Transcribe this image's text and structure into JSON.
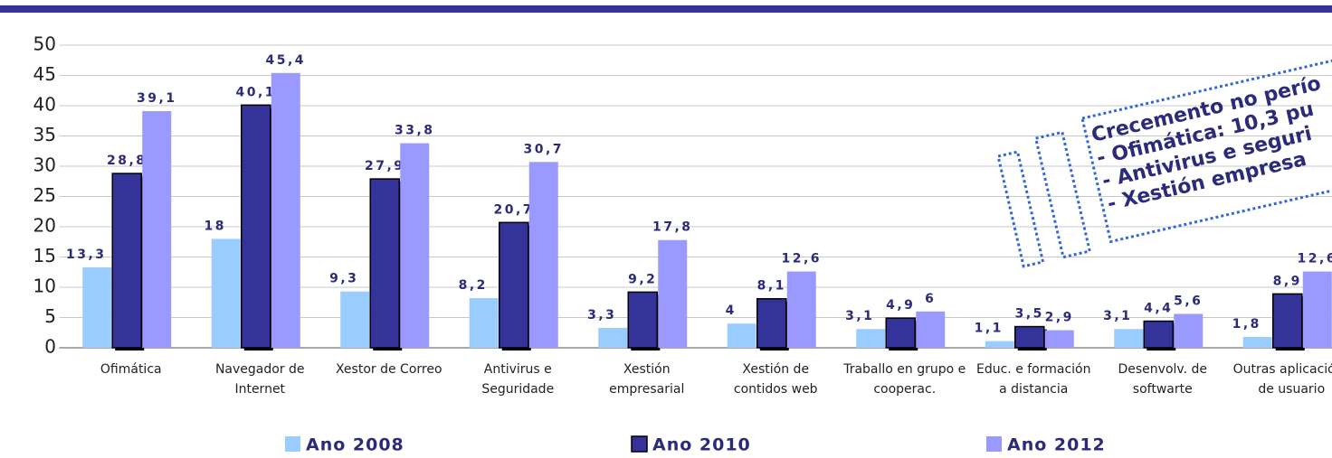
{
  "chart_data": {
    "type": "bar",
    "categories": [
      "Ofimática",
      "Navegador de Internet",
      "Xestor de Correo",
      "Antivirus e Seguridade",
      "Xestión empresarial",
      "Xestión de contidos web",
      "Traballo en grupo e cooperac.",
      "Educ. e formación a distancia",
      "Desenvolv. de softwarte",
      "Outras aplicacións de usuario"
    ],
    "series": [
      {
        "name": "Ano 2008",
        "color": "#99ccff",
        "values": [
          13.3,
          18,
          9.3,
          8.2,
          3.3,
          4,
          3.1,
          1.1,
          3.1,
          1.8
        ],
        "value_labels": [
          "13,3",
          "18",
          "9,3",
          "8,2",
          "3,3",
          "4",
          "3,1",
          "1,1",
          "3,1",
          "1,8"
        ]
      },
      {
        "name": "Ano 2010",
        "color": "#333399",
        "values": [
          28.8,
          40.1,
          27.9,
          20.7,
          9.2,
          8.1,
          4.9,
          3.5,
          4.4,
          8.9
        ],
        "value_labels": [
          "28,8",
          "40,1",
          "27,9",
          "20,7",
          "9,2",
          "8,1",
          "4,9",
          "3,5",
          "4,4",
          "8,9"
        ]
      },
      {
        "name": "Ano 2012",
        "color": "#9999ff",
        "values": [
          39.1,
          45.4,
          33.8,
          30.7,
          17.8,
          12.6,
          6,
          2.9,
          5.6,
          12.6
        ],
        "value_labels": [
          "39,1",
          "45,4",
          "33,8",
          "30,7",
          "17,8",
          "12,6",
          "6",
          "2,9",
          "5,6",
          "12,6"
        ]
      }
    ],
    "ylim": [
      0,
      50
    ],
    "yticks": [
      0,
      5,
      10,
      15,
      20,
      25,
      30,
      35,
      40,
      45,
      50
    ],
    "grid": true,
    "annotation": [
      "Crecemento no perío",
      "- Ofimática: 10,3 pu",
      "- Antivirus e seguri",
      "- Xestión empresa"
    ]
  }
}
